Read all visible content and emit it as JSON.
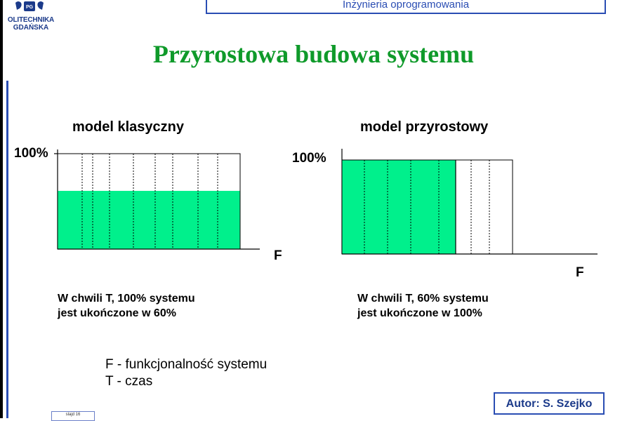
{
  "logo": {
    "line1": "OLITECHNIKA",
    "line2": "GDAŃSKA"
  },
  "header": {
    "text": "Inżynieria oprogramowania"
  },
  "title": "Przyrostowa budowa systemu",
  "left_model": {
    "heading": "model klasyczny",
    "y_label": "100%",
    "x_label": "F",
    "caption_line1": "W chwili T, 100% systemu",
    "caption_line2": "jest ukończone w 60%",
    "filled_fraction_height": 0.6,
    "filled_fraction_width": 1.0
  },
  "right_model": {
    "heading": "model przyrostowy",
    "y_label": "100%",
    "x_label": "F",
    "caption_line1": "W chwili T, 60% systemu",
    "caption_line2": "jest ukończone w 100%",
    "filled_fraction_height": 1.0,
    "filled_fraction_width": 0.6
  },
  "legend": {
    "line1": "F - funkcjonalność systemu",
    "line2": "T - czas"
  },
  "author": "Autor: S. Szejko",
  "slide_number": "slajd 16",
  "colors": {
    "fill": "#00f08c",
    "title": "#0f9a2a",
    "accent_blue": "#2a4db3"
  }
}
